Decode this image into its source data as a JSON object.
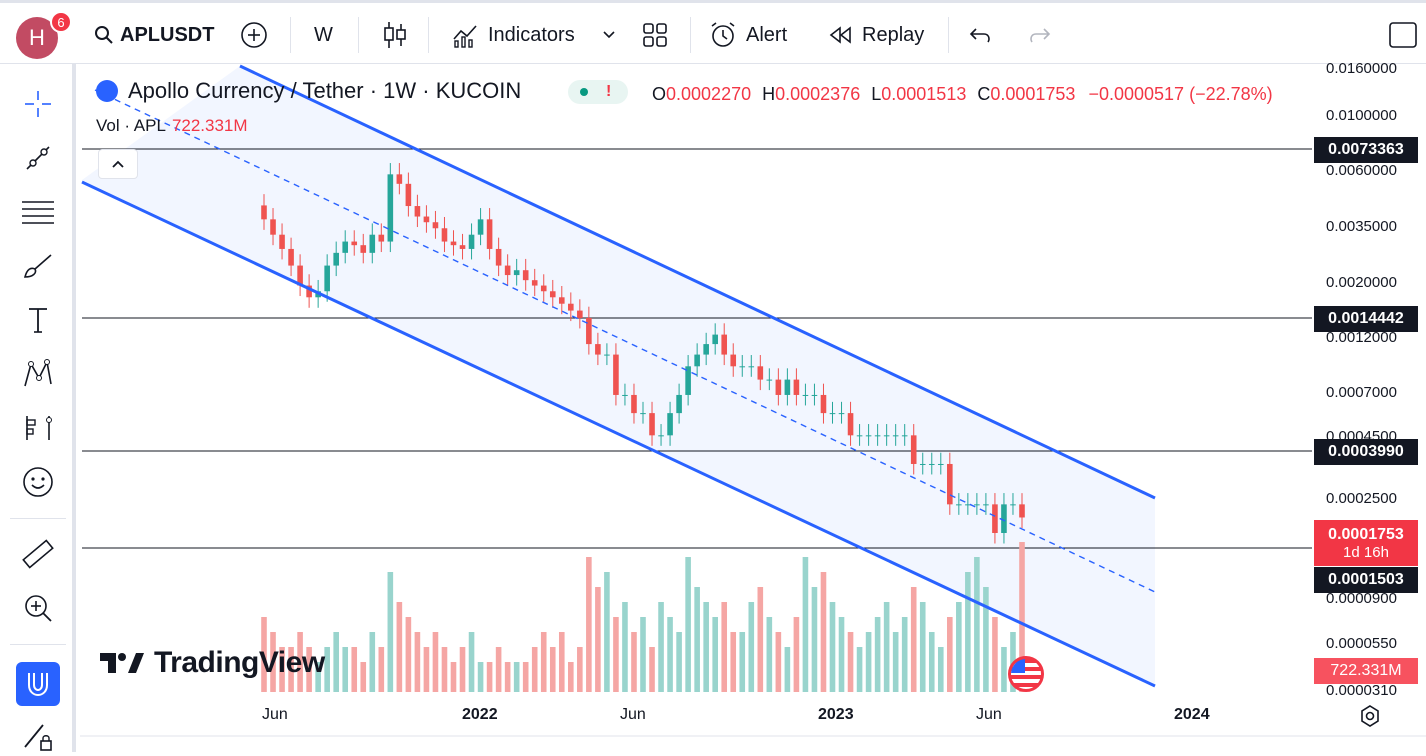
{
  "header": {
    "avatar_letter": "H",
    "notifications": "6",
    "symbol": "APLUSDT",
    "interval": "W",
    "indicators_label": "Indicators",
    "alert_label": "Alert",
    "replay_label": "Replay"
  },
  "legend": {
    "title": "Apollo Currency / Tether · 1W · KUCOIN",
    "o_label": "O",
    "o": "0.0002270",
    "h_label": "H",
    "h": "0.0002376",
    "l_label": "L",
    "l": "0.0001513",
    "c_label": "C",
    "c": "0.0001753",
    "change": "−0.0000517 (−22.78%)",
    "vol_label": "Vol · APL",
    "vol_value": "722.331M"
  },
  "price_axis": {
    "ticks": [
      "0.0160000",
      "0.0100000",
      "0.0060000",
      "0.0035000",
      "0.0020000",
      "0.0012000",
      "0.0007000",
      "0.0004500",
      "0.0002500",
      "0.0000900",
      "0.0000550",
      "0.0000310"
    ],
    "hlines": [
      "0.0073363",
      "0.0014442",
      "0.0003990",
      "0.0001503"
    ],
    "last_price": "0.0001753",
    "countdown": "1d 16h",
    "volume_label": "722.331M"
  },
  "time_axis": {
    "ticks": [
      "Jun",
      "2022",
      "Jun",
      "2023",
      "Jun",
      "2024"
    ]
  },
  "watermark": "TradingView",
  "colors": {
    "up": "#26a69a",
    "down": "#ef5350",
    "channel": "#2962ff",
    "accent": "#2962ff"
  },
  "chart_data": {
    "type": "candlestick",
    "title": "Apollo Currency / Tether · 1W · KUCOIN",
    "xlabel": "",
    "ylabel": "",
    "x_ticks": [
      "Jun",
      "2022",
      "Jun",
      "2023",
      "Jun",
      "2024"
    ],
    "y_scale": "log",
    "close": [
      0.0035,
      0.003,
      0.0026,
      0.0022,
      0.0018,
      0.0016,
      0.0017,
      0.0022,
      0.0025,
      0.0028,
      0.0027,
      0.0025,
      0.003,
      0.0028,
      0.0055,
      0.005,
      0.004,
      0.0036,
      0.0034,
      0.0032,
      0.0028,
      0.0027,
      0.0026,
      0.003,
      0.0035,
      0.0026,
      0.0022,
      0.002,
      0.0021,
      0.0019,
      0.0018,
      0.0017,
      0.0016,
      0.0015,
      0.0014,
      0.0013,
      0.001,
      0.0009,
      0.0009,
      0.0006,
      0.0006,
      0.0005,
      0.0005,
      0.0004,
      0.0004,
      0.0005,
      0.0006,
      0.0008,
      0.0009,
      0.001,
      0.0011,
      0.0009,
      0.0008,
      0.0008,
      0.0008,
      0.0007,
      0.0007,
      0.0006,
      0.0007,
      0.0006,
      0.0006,
      0.0006,
      0.0005,
      0.0005,
      0.0005,
      0.0004,
      0.0004,
      0.0004,
      0.0004,
      0.0004,
      0.0004,
      0.0004,
      0.0003,
      0.0003,
      0.0003,
      0.0003,
      0.0002,
      0.0002,
      0.0002,
      0.0002,
      0.0002,
      0.00015,
      0.0002,
      0.0002,
      0.0001753
    ],
    "volume": [
      5,
      4,
      3,
      3,
      4,
      3,
      2,
      3,
      4,
      3,
      3,
      2,
      4,
      3,
      8,
      6,
      5,
      4,
      3,
      4,
      3,
      2,
      3,
      4,
      2,
      2,
      3,
      2,
      2,
      2,
      3,
      4,
      3,
      4,
      2,
      3,
      9,
      7,
      8,
      5,
      6,
      4,
      5,
      3,
      6,
      5,
      4,
      9,
      7,
      6,
      5,
      6,
      4,
      4,
      6,
      7,
      5,
      4,
      3,
      5,
      9,
      7,
      8,
      6,
      5,
      4,
      3,
      4,
      5,
      6,
      4,
      5,
      7,
      6,
      4,
      3,
      5,
      6,
      8,
      9,
      7,
      5,
      3,
      4,
      10
    ]
  }
}
